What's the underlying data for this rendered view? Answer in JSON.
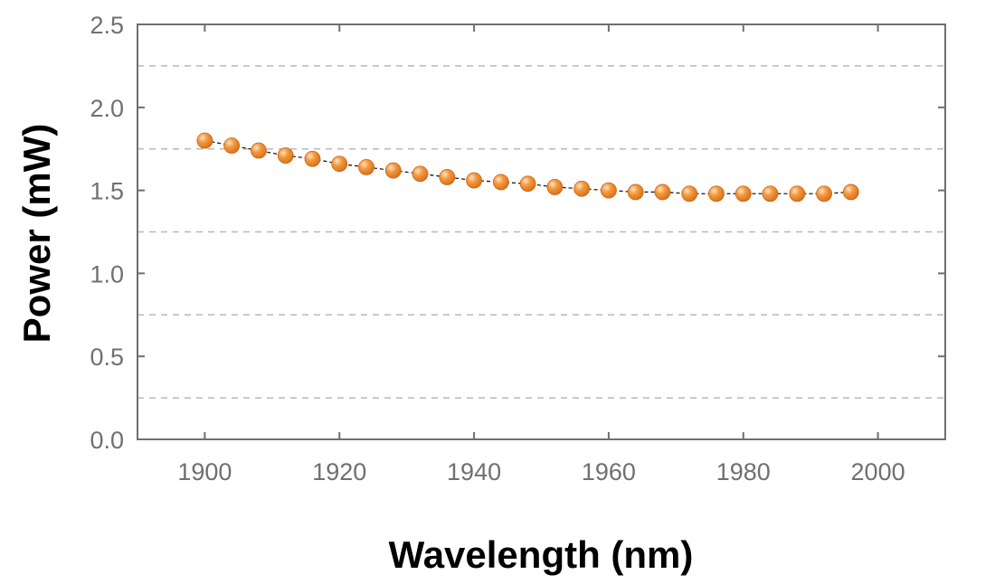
{
  "chart_data": {
    "type": "scatter",
    "title": "",
    "xlabel": "Wavelength (nm)",
    "ylabel": "Power (mW)",
    "xlim": [
      1890,
      2010
    ],
    "ylim": [
      0,
      2.5
    ],
    "x_ticks": [
      1900,
      1920,
      1940,
      1960,
      1980,
      2000
    ],
    "x_tick_labels": [
      "1900",
      "1920",
      "1940",
      "1960",
      "1980",
      "2000"
    ],
    "y_ticks": [
      0,
      0.5,
      1,
      1.5,
      2,
      2.5
    ],
    "y_tick_labels": [
      "0.0",
      "0.5",
      "1.0",
      "1.5",
      "2.0",
      "2.5"
    ],
    "gridlines_y": [
      0.25,
      0.75,
      1.25,
      1.75,
      2.25
    ],
    "grid": "dashed horizontal",
    "series": [
      {
        "name": "Power",
        "marker": "sphere",
        "line": "dashed",
        "x": [
          1900,
          1904,
          1908,
          1912,
          1916,
          1920,
          1924,
          1928,
          1932,
          1936,
          1940,
          1944,
          1948,
          1952,
          1956,
          1960,
          1964,
          1968,
          1972,
          1976,
          1980,
          1984,
          1988,
          1992,
          1996
        ],
        "y": [
          1.8,
          1.77,
          1.74,
          1.71,
          1.69,
          1.66,
          1.64,
          1.62,
          1.6,
          1.58,
          1.56,
          1.55,
          1.54,
          1.52,
          1.51,
          1.5,
          1.49,
          1.49,
          1.48,
          1.48,
          1.48,
          1.48,
          1.48,
          1.48,
          1.49
        ]
      }
    ],
    "colors": {
      "marker": "#f08a24",
      "marker_highlight": "#ffe2c4",
      "marker_edge": "#c9671a",
      "line": "#1a1a1a",
      "frame": "#6f6f6f",
      "grid": "#b8b8b8",
      "tick_text": "#707070",
      "title_text": "#000000"
    }
  }
}
